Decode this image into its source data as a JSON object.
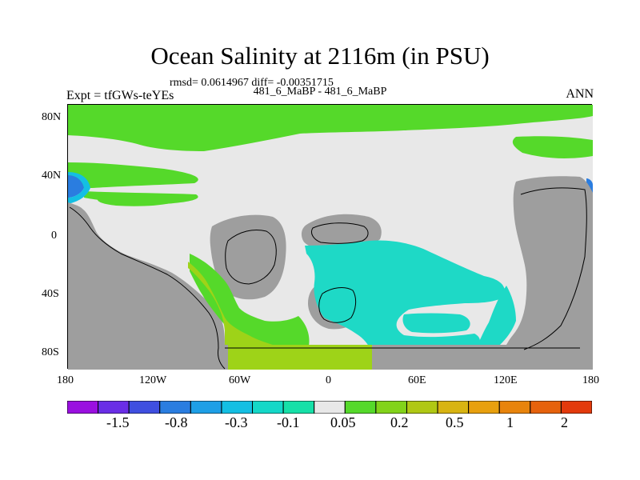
{
  "header": {
    "title": "Ocean Salinity at 2116m (in PSU)",
    "stats": "rmsd= 0.0614967 diff= -0.00351715",
    "cases": "481_6_MaBP - 481_6_MaBP",
    "experiment": "Expt = tfGWs-teYEs",
    "season": "ANN"
  },
  "axes": {
    "lat_labels": [
      "80N",
      "40N",
      "0",
      "40S",
      "80S"
    ],
    "lon_labels": [
      "180",
      "120W",
      "60W",
      "0",
      "60E",
      "120E",
      "180"
    ]
  },
  "colorbar": {
    "labels": [
      "-1.5",
      "-0.8",
      "-0.3",
      "-0.1",
      "0.05",
      "0.2",
      "0.5",
      "1",
      "2"
    ],
    "colors": [
      "#9a10e0",
      "#6a2ee6",
      "#3f4fe0",
      "#2a7de0",
      "#1e9fe6",
      "#14bfe3",
      "#14d8c8",
      "#16e0a8",
      "#e8e8e8",
      "#55d92a",
      "#82d31a",
      "#b0c814",
      "#d8b412",
      "#e8a00e",
      "#e8840c",
      "#e6620c",
      "#e33a0c"
    ]
  },
  "colors": {
    "land": "#9e9e9e",
    "near_zero": "#e8e8e8",
    "green": "#55d92a",
    "yellow_green": "#9ed318",
    "teal": "#1ed9c6",
    "cyan": "#14bfe3",
    "blue": "#2a7de0"
  }
}
